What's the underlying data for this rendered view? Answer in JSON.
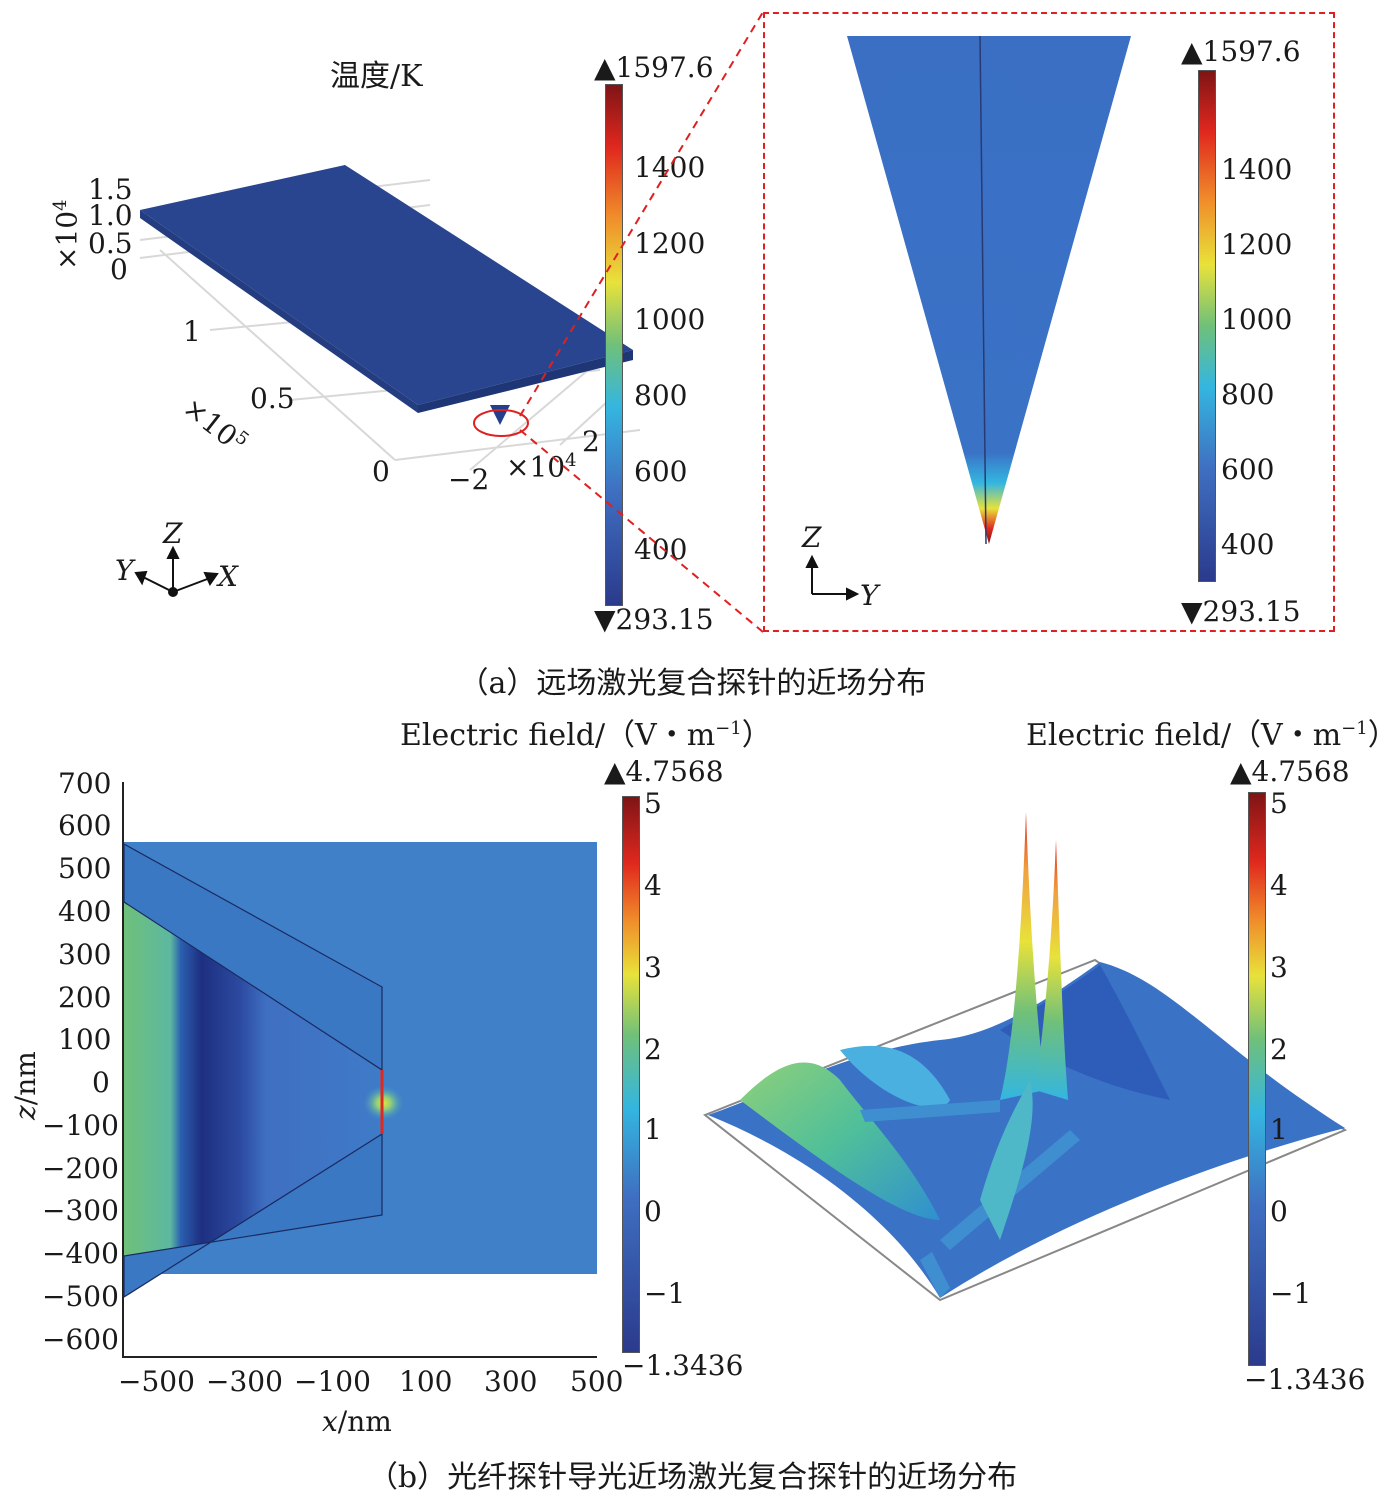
{
  "panel_a": {
    "title": "温度/K",
    "colorbar": {
      "max": "1597.6",
      "min": "293.15",
      "ticks": [
        "1400",
        "1200",
        "1000",
        "800",
        "600",
        "400"
      ]
    },
    "z_axis": {
      "multiplier": "×10",
      "exp": "4",
      "ticks": [
        "1.5",
        "1.0",
        "0.5",
        "0"
      ]
    },
    "x_axis": {
      "multiplier": "×10",
      "exp": "5",
      "ticks": [
        "1",
        "0.5",
        "0"
      ]
    },
    "y_axis": {
      "multiplier": "×10",
      "exp": "4",
      "ticks": [
        "−2",
        "2"
      ]
    },
    "triad": {
      "z": "Z",
      "y": "Y",
      "x": "X"
    },
    "inset": {
      "colorbar": {
        "max": "1597.6",
        "min": "293.15",
        "ticks": [
          "1400",
          "1200",
          "1000",
          "800",
          "600",
          "400"
        ]
      },
      "triad": {
        "z": "Z",
        "y": "Y"
      }
    },
    "caption": "（a）远场激光复合探针的近场分布"
  },
  "panel_b": {
    "left": {
      "colorbar_title": "Electric field/（V・m",
      "colorbar_title_exp": "−1",
      "colorbar_title_close": "）",
      "colorbar": {
        "max": "4.7568",
        "min": "−1.3436",
        "ticks": [
          "5",
          "4",
          "3",
          "2",
          "1",
          "0",
          "−1"
        ]
      },
      "ylabel_var": "z",
      "ylabel_unit": "/nm",
      "xlabel_var": "x",
      "xlabel_unit": "/nm",
      "yticks": [
        "700",
        "600",
        "500",
        "400",
        "300",
        "200",
        "100",
        "0",
        "−100",
        "−200",
        "−300",
        "−400",
        "−500",
        "−600"
      ],
      "xticks": [
        "−500",
        "−300",
        "−100",
        "100",
        "300",
        "500"
      ]
    },
    "right": {
      "colorbar_title": "Electric field/（V・m",
      "colorbar_title_exp": "−1",
      "colorbar_title_close": "）",
      "colorbar": {
        "max": "4.7568",
        "min": "−1.3436",
        "ticks": [
          "5",
          "4",
          "3",
          "2",
          "1",
          "0",
          "−1"
        ]
      }
    },
    "caption": "（b）光纤探针导光近场激光复合探针的近场分布"
  },
  "colors": {
    "jet_dark_red": "#7f1416",
    "jet_red": "#e0281e",
    "jet_yellow": "#e8e23a",
    "jet_green": "#6fc07a",
    "jet_cyan": "#34b6e0",
    "jet_blue": "#3f6fc1",
    "jet_navy": "#2b3a8c",
    "slab": "#2a4590",
    "inset_fill": "#3a6fc4",
    "dashed_red": "#e02020"
  }
}
